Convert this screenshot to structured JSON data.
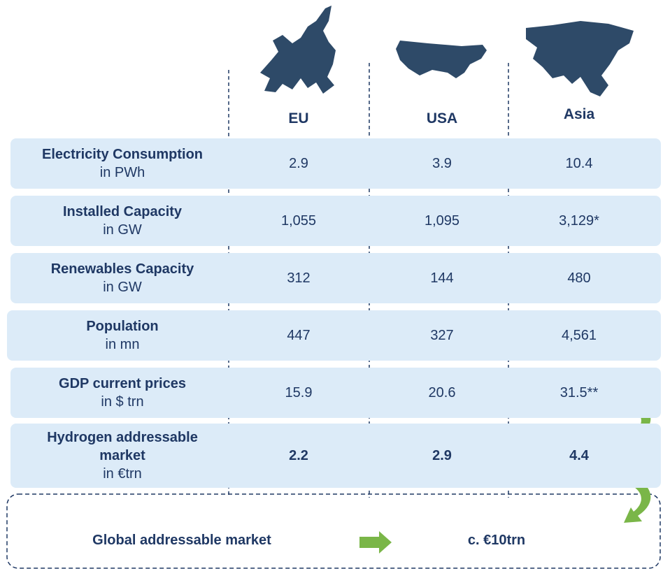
{
  "header": {
    "columns": [
      "EU",
      "USA",
      "Asia"
    ]
  },
  "table": {
    "rows": [
      {
        "label": "Electricity Consumption",
        "unit": "in PWh",
        "values": [
          "2.9",
          "3.9",
          "10.4"
        ]
      },
      {
        "label": "Installed Capacity",
        "unit": "in GW",
        "values": [
          "1,055",
          "1,095",
          "3,129*"
        ]
      },
      {
        "label": "Renewables Capacity",
        "unit": "in GW",
        "values": [
          "312",
          "144",
          "480"
        ]
      },
      {
        "label": "Population",
        "unit": "in mn",
        "values": [
          "447",
          "327",
          "4,561"
        ]
      },
      {
        "label": "GDP current prices",
        "unit": "in $ trn",
        "values": [
          "15.9",
          "20.6",
          "31.5**"
        ]
      },
      {
        "label": "Hydrogen addressable market",
        "unit": "in €trn",
        "values": [
          "2.2",
          "2.9",
          "4.4"
        ]
      }
    ]
  },
  "footer": {
    "label": "Global addressable market",
    "value": "c. €10trn"
  }
}
